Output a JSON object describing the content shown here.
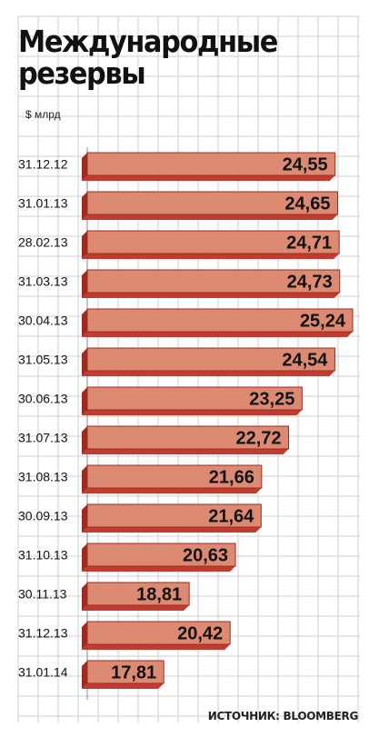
{
  "title_line1": "Международные",
  "title_line2": "резервы",
  "units_label": "$ млрд",
  "source_label": "ИСТОЧНИК: BLOOMBERG",
  "colors": {
    "bar_face": "#dd8a73",
    "bar_side": "#c23b2f",
    "bar_edge": "#9e2a22",
    "grid": "#cfcfcf",
    "text": "#111111"
  },
  "chart_data": {
    "type": "bar",
    "orientation": "horizontal",
    "title": "Международные резервы",
    "unit": "$ млрд",
    "categories": [
      "31.12.12",
      "31.01.13",
      "28.02.13",
      "31.03.13",
      "30.04.13",
      "31.05.13",
      "30.06.13",
      "31.07.13",
      "31.08.13",
      "30.09.13",
      "31.10.13",
      "30.11.13",
      "31.12.13",
      "31.01.14"
    ],
    "values": [
      24.55,
      24.65,
      24.71,
      24.73,
      25.24,
      24.54,
      23.25,
      22.72,
      21.66,
      21.64,
      20.63,
      18.81,
      20.42,
      17.81
    ],
    "value_labels": [
      "24,55",
      "24,65",
      "24,71",
      "24,73",
      "25,24",
      "24,54",
      "23,25",
      "22,72",
      "21,66",
      "21,64",
      "20,63",
      "18,81",
      "20,42",
      "17,81"
    ],
    "xlim": [
      14.8,
      25.24
    ],
    "grid": true,
    "source": "ИСТОЧНИК: BLOOMBERG"
  }
}
